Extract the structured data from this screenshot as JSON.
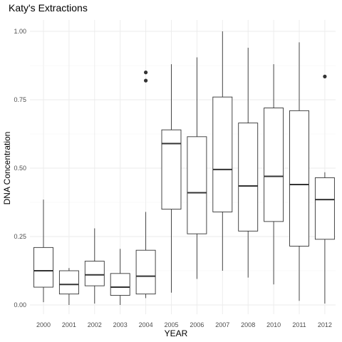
{
  "chart_data": {
    "type": "boxplot",
    "title": "Katy's Extractions",
    "xlabel": "YEAR",
    "ylabel": "DNA Concentration",
    "ylim": [
      0.0,
      1.0
    ],
    "yticks": [
      "0.00",
      "0.25",
      "0.50",
      "0.75",
      "1.00"
    ],
    "grid": true,
    "legend": "none",
    "categories": [
      "2000",
      "2001",
      "2002",
      "2003",
      "2004",
      "2005",
      "2006",
      "2007",
      "2008",
      "2010",
      "2011",
      "2012"
    ],
    "boxes": [
      {
        "x": "2000",
        "min": 0.01,
        "q1": 0.065,
        "median": 0.125,
        "q3": 0.21,
        "max": 0.385,
        "outliers": []
      },
      {
        "x": "2001",
        "min": 0.0,
        "q1": 0.04,
        "median": 0.075,
        "q3": 0.125,
        "max": 0.135,
        "outliers": []
      },
      {
        "x": "2002",
        "min": 0.005,
        "q1": 0.07,
        "median": 0.11,
        "q3": 0.16,
        "max": 0.28,
        "outliers": []
      },
      {
        "x": "2003",
        "min": 0.0,
        "q1": 0.035,
        "median": 0.065,
        "q3": 0.115,
        "max": 0.205,
        "outliers": []
      },
      {
        "x": "2004",
        "min": 0.025,
        "q1": 0.04,
        "median": 0.105,
        "q3": 0.2,
        "max": 0.34,
        "outliers": [
          0.82,
          0.85
        ]
      },
      {
        "x": "2005",
        "min": 0.045,
        "q1": 0.35,
        "median": 0.59,
        "q3": 0.64,
        "max": 0.88,
        "outliers": []
      },
      {
        "x": "2006",
        "min": 0.095,
        "q1": 0.26,
        "median": 0.41,
        "q3": 0.615,
        "max": 0.905,
        "outliers": []
      },
      {
        "x": "2007",
        "min": 0.125,
        "q1": 0.34,
        "median": 0.495,
        "q3": 0.76,
        "max": 1.0,
        "outliers": []
      },
      {
        "x": "2008",
        "min": 0.1,
        "q1": 0.27,
        "median": 0.435,
        "q3": 0.665,
        "max": 0.94,
        "outliers": []
      },
      {
        "x": "2010",
        "min": 0.075,
        "q1": 0.305,
        "median": 0.47,
        "q3": 0.72,
        "max": 0.88,
        "outliers": []
      },
      {
        "x": "2011",
        "min": 0.015,
        "q1": 0.215,
        "median": 0.44,
        "q3": 0.71,
        "max": 0.96,
        "outliers": []
      },
      {
        "x": "2012",
        "min": 0.005,
        "q1": 0.24,
        "median": 0.385,
        "q3": 0.465,
        "max": 0.485,
        "outliers": [
          0.835
        ]
      }
    ]
  }
}
